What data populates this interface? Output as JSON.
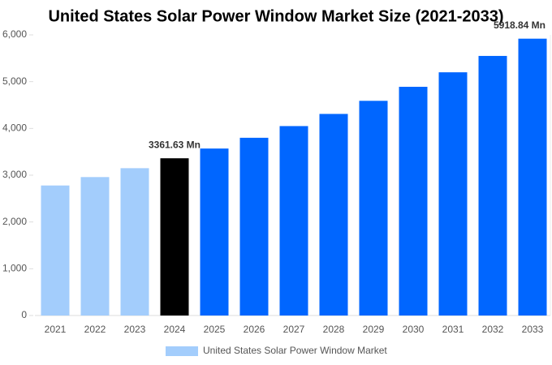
{
  "chart_data": {
    "type": "bar",
    "title": "United States Solar Power Window Market Size (2021-2033)",
    "categories": [
      "2021",
      "2022",
      "2023",
      "2024",
      "2025",
      "2026",
      "2027",
      "2028",
      "2029",
      "2030",
      "2031",
      "2032",
      "2033"
    ],
    "series": [
      {
        "name": "United States Solar Power Window Market",
        "color": "#a3cdfc",
        "values": [
          2780,
          2960,
          3150,
          3361.63,
          3570,
          3800,
          4050,
          4310,
          4590,
          4890,
          5200,
          5550,
          5918.84
        ],
        "value_labels": [
          null,
          null,
          null,
          "3361.63 Mn",
          null,
          null,
          null,
          null,
          null,
          null,
          null,
          null,
          "5918.84 Mn"
        ],
        "colors": [
          "#a3cdfc",
          "#a3cdfc",
          "#a3cdfc",
          "#000000",
          "#0066ff",
          "#0066ff",
          "#0066ff",
          "#0066ff",
          "#0066ff",
          "#0066ff",
          "#0066ff",
          "#0066ff",
          "#0066ff"
        ]
      }
    ],
    "ylim": [
      0,
      6000
    ],
    "yticks": [
      0,
      {
        "value": 1000,
        "label": "1,000"
      },
      {
        "value": 2000,
        "label": "2,000"
      },
      {
        "value": 3000,
        "label": "3,000"
      },
      {
        "value": 4000,
        "label": "4,000"
      },
      {
        "value": 5000,
        "label": "5,000"
      },
      {
        "value": 6000,
        "label": "6,000"
      }
    ],
    "grid": false
  }
}
